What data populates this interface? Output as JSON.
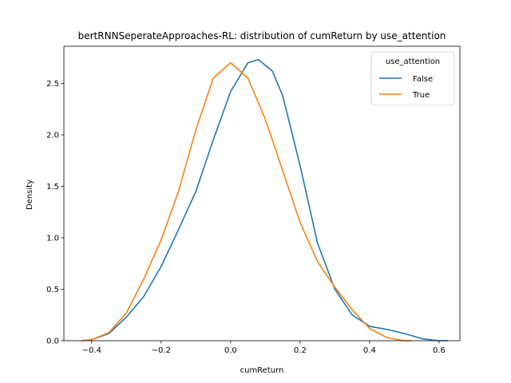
{
  "chart_data": {
    "type": "line",
    "title": "bertRNNSeperateApproaches-RL: distribution of cumReturn by use_attention",
    "xlabel": "cumReturn",
    "ylabel": "Density",
    "xlim": [
      -0.48,
      0.66
    ],
    "ylim": [
      0,
      2.86
    ],
    "xticks": [
      -0.4,
      -0.2,
      0.0,
      0.2,
      0.4,
      0.6
    ],
    "xtick_labels": [
      "−0.4",
      "−0.2",
      "0.0",
      "0.2",
      "0.4",
      "0.6"
    ],
    "yticks": [
      0.0,
      0.5,
      1.0,
      1.5,
      2.0,
      2.5
    ],
    "ytick_labels": [
      "0.0",
      "0.5",
      "1.0",
      "1.5",
      "2.0",
      "2.5"
    ],
    "grid": false,
    "legend": {
      "title": "use_attention",
      "placement": "top-right"
    },
    "series": [
      {
        "name": "False",
        "color": "#1f77b4",
        "x": [
          -0.43,
          -0.4,
          -0.35,
          -0.3,
          -0.25,
          -0.2,
          -0.15,
          -0.1,
          -0.05,
          0.0,
          0.05,
          0.08,
          0.12,
          0.15,
          0.2,
          0.25,
          0.3,
          0.35,
          0.4,
          0.45,
          0.5,
          0.55,
          0.6,
          0.625
        ],
        "y": [
          0.0,
          0.01,
          0.07,
          0.23,
          0.43,
          0.72,
          1.08,
          1.45,
          1.95,
          2.42,
          2.7,
          2.73,
          2.62,
          2.38,
          1.7,
          0.95,
          0.5,
          0.25,
          0.14,
          0.11,
          0.07,
          0.02,
          0.0,
          0.0
        ]
      },
      {
        "name": "True",
        "color": "#ff7f0e",
        "x": [
          -0.43,
          -0.4,
          -0.35,
          -0.3,
          -0.25,
          -0.2,
          -0.15,
          -0.1,
          -0.05,
          0.0,
          0.05,
          0.1,
          0.15,
          0.2,
          0.25,
          0.3,
          0.35,
          0.4,
          0.45,
          0.5,
          0.52
        ],
        "y": [
          0.0,
          0.01,
          0.08,
          0.27,
          0.6,
          0.98,
          1.45,
          2.05,
          2.55,
          2.7,
          2.55,
          2.15,
          1.65,
          1.15,
          0.77,
          0.52,
          0.3,
          0.12,
          0.03,
          0.0,
          0.0
        ]
      }
    ]
  }
}
